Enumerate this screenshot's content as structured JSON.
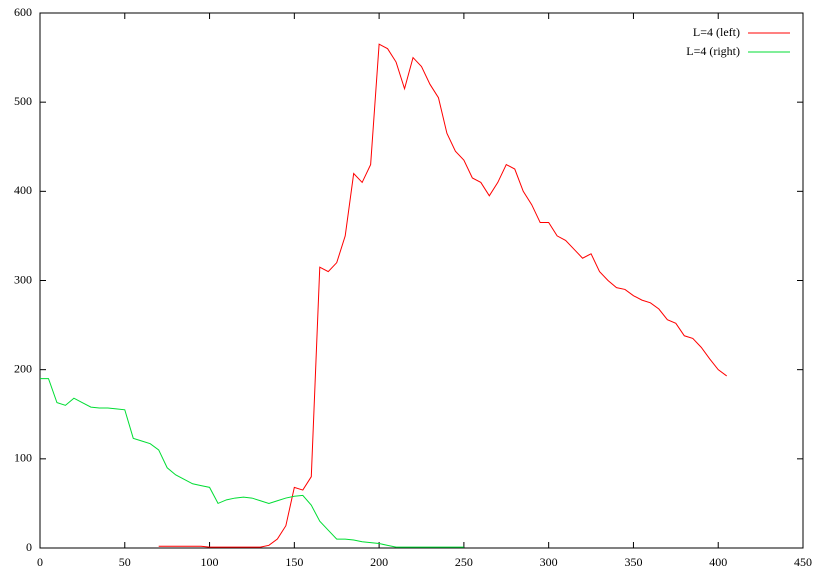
{
  "chart_data": {
    "type": "line",
    "x": [
      0,
      5,
      10,
      15,
      20,
      25,
      30,
      35,
      40,
      45,
      50,
      55,
      60,
      65,
      70,
      75,
      80,
      85,
      90,
      95,
      100,
      105,
      110,
      115,
      120,
      125,
      130,
      135,
      140,
      145,
      150,
      155,
      160,
      165,
      170,
      175,
      180,
      185,
      190,
      195,
      200,
      205,
      210,
      215,
      220,
      225,
      230,
      235,
      240,
      245,
      250,
      255,
      260,
      265,
      270,
      275,
      280,
      285,
      290,
      295,
      300,
      305,
      310,
      315,
      320,
      325,
      330,
      335,
      340,
      345,
      350,
      355,
      360,
      365,
      370,
      375,
      380,
      385,
      390,
      395,
      400,
      405
    ],
    "series": [
      {
        "name": "L=4 (left)",
        "color": "#ff0000",
        "values": [
          null,
          null,
          null,
          null,
          null,
          null,
          null,
          null,
          null,
          null,
          null,
          null,
          null,
          null,
          2,
          2,
          2,
          2,
          2,
          2,
          1,
          1,
          1,
          1,
          1,
          1,
          1,
          3,
          10,
          25,
          68,
          65,
          80,
          315,
          310,
          320,
          350,
          420,
          410,
          430,
          565,
          560,
          545,
          515,
          550,
          540,
          520,
          505,
          465,
          445,
          435,
          415,
          410,
          395,
          410,
          430,
          425,
          400,
          385,
          365,
          365,
          350,
          345,
          335,
          325,
          330,
          310,
          300,
          292,
          290,
          283,
          278,
          275,
          268,
          256,
          252,
          238,
          235,
          225,
          212,
          200,
          193
        ]
      },
      {
        "name": "L=4 (right)",
        "color": "#00dd33",
        "values": [
          190,
          190,
          163,
          160,
          168,
          163,
          158,
          157,
          157,
          156,
          155,
          123,
          120,
          117,
          110,
          90,
          82,
          77,
          72,
          70,
          68,
          50,
          54,
          56,
          57,
          56,
          53,
          50,
          53,
          56,
          58,
          59,
          48,
          30,
          20,
          10,
          10,
          9,
          7,
          6,
          5,
          3,
          1,
          1,
          1,
          1,
          1,
          1,
          1,
          1,
          1,
          null,
          null,
          null,
          null,
          null,
          null,
          null,
          null,
          null,
          null,
          null,
          null,
          null,
          null,
          null,
          null,
          null,
          null,
          null,
          null,
          null,
          null,
          null,
          null,
          null,
          null,
          null,
          null,
          null,
          null,
          null
        ]
      }
    ],
    "xlim": [
      0,
      450
    ],
    "xticks": [
      0,
      50,
      100,
      150,
      200,
      250,
      300,
      350,
      400,
      450
    ],
    "ylim": [
      0,
      600
    ],
    "yticks": [
      0,
      100,
      200,
      300,
      400,
      500,
      600
    ],
    "legend": "top-right"
  }
}
